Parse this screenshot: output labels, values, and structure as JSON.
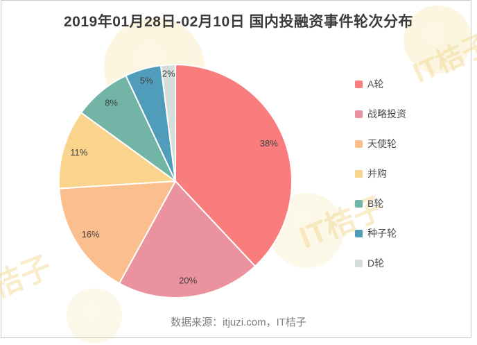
{
  "chart_data": {
    "type": "pie",
    "title": "2019年01月28日-02月10日 国内投融资事件轮次分布",
    "legend_position": "right",
    "start_angle_deg": 0,
    "direction": "clockwise",
    "slices": [
      {
        "label": "A轮",
        "percent": 38,
        "percent_label": "38%",
        "color": "#F97D7D"
      },
      {
        "label": "战略投资",
        "percent": 20,
        "percent_label": "20%",
        "color": "#EA929D"
      },
      {
        "label": "天使轮",
        "percent": 16,
        "percent_label": "16%",
        "color": "#FBBF8E"
      },
      {
        "label": "并购",
        "percent": 11,
        "percent_label": "11%",
        "color": "#FAD38C"
      },
      {
        "label": "B轮",
        "percent": 8,
        "percent_label": "8%",
        "color": "#72B5A6"
      },
      {
        "label": "种子轮",
        "percent": 5,
        "percent_label": "5%",
        "color": "#4F9CBB"
      },
      {
        "label": "D轮",
        "percent": 2,
        "percent_label": "2%",
        "color": "#D5DEDA"
      }
    ]
  },
  "footer": {
    "source_text": "数据来源：itjuzi.com，IT桔子"
  },
  "watermark": {
    "text": "IT桔子"
  }
}
